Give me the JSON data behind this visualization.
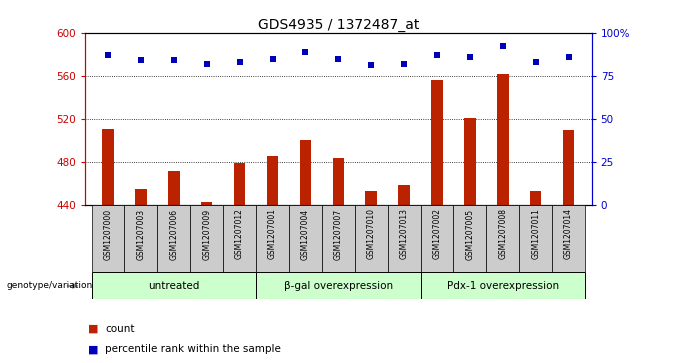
{
  "title": "GDS4935 / 1372487_at",
  "samples": [
    "GSM1207000",
    "GSM1207003",
    "GSM1207006",
    "GSM1207009",
    "GSM1207012",
    "GSM1207001",
    "GSM1207004",
    "GSM1207007",
    "GSM1207010",
    "GSM1207013",
    "GSM1207002",
    "GSM1207005",
    "GSM1207008",
    "GSM1207011",
    "GSM1207014"
  ],
  "counts": [
    511,
    455,
    472,
    443,
    479,
    486,
    500,
    484,
    453,
    459,
    556,
    521,
    562,
    453,
    510
  ],
  "percentiles": [
    87,
    84,
    84,
    82,
    83,
    85,
    89,
    85,
    81,
    82,
    87,
    86,
    92,
    83,
    86
  ],
  "groups": [
    {
      "label": "untreated",
      "start": 0,
      "end": 5
    },
    {
      "label": "β-gal overexpression",
      "start": 5,
      "end": 10
    },
    {
      "label": "Pdx-1 overexpression",
      "start": 10,
      "end": 15
    }
  ],
  "bar_color": "#bb2200",
  "dot_color": "#0000bb",
  "ymin": 440,
  "ymax": 600,
  "yticks": [
    440,
    480,
    520,
    560,
    600
  ],
  "y2ticks": [
    0,
    25,
    50,
    75,
    100
  ],
  "group_bg_color": "#ccffcc",
  "sample_bg_color": "#cccccc",
  "legend_count_color": "#bb2200",
  "legend_dot_color": "#0000bb",
  "tick_color_left": "#cc0000",
  "tick_color_right": "#0000cc",
  "grid_color": "#000000",
  "genotype_label": "genotype/variation",
  "bar_width": 0.35
}
